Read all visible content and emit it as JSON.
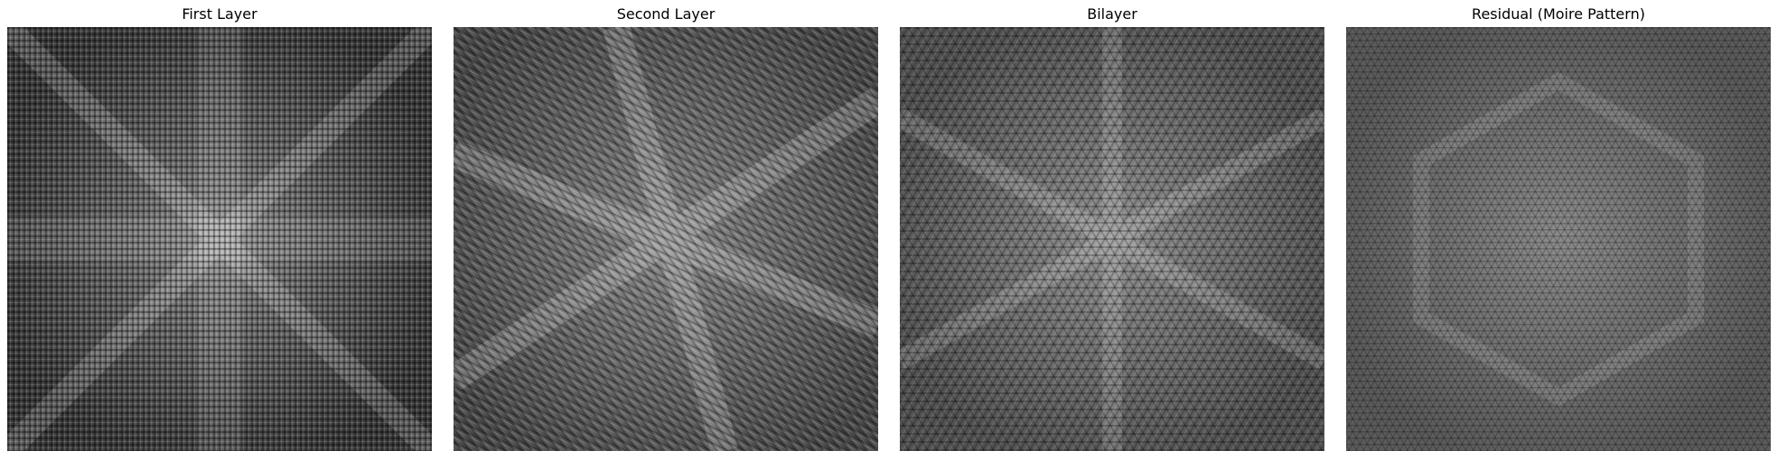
{
  "panels": [
    {
      "id": "first",
      "title": "First Layer",
      "tone": "#4d4d4d",
      "highlight": "#9a9a9a",
      "mode": "cross"
    },
    {
      "id": "second",
      "title": "Second Layer",
      "tone": "#565656",
      "highlight": "#a4a4a4",
      "mode": "rotated"
    },
    {
      "id": "bilayer",
      "title": "Bilayer",
      "tone": "#5a5a5a",
      "highlight": "#9e9e9e",
      "mode": "hex"
    },
    {
      "id": "residual",
      "title": "Residual (Moire Pattern)",
      "tone": "#5e5e5e",
      "highlight": "#959595",
      "mode": "moire"
    }
  ]
}
